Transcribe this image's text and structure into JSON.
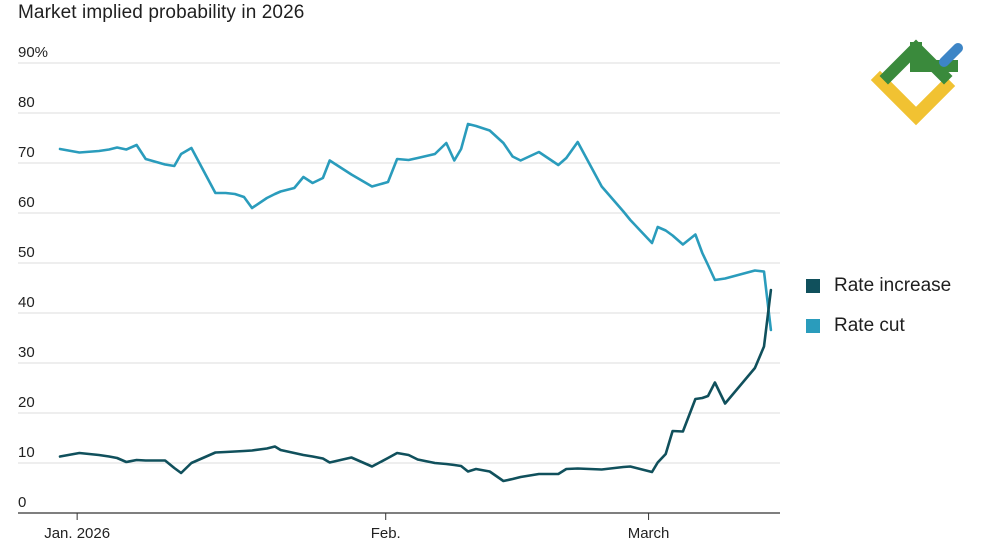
{
  "chart_data": {
    "type": "line",
    "title": "Market implied probability in 2026",
    "xlabel": "",
    "ylabel": "",
    "ylim": [
      0,
      90
    ],
    "y_ticks": [
      {
        "value": 0,
        "label": "0"
      },
      {
        "value": 10,
        "label": "10"
      },
      {
        "value": 20,
        "label": "20"
      },
      {
        "value": 30,
        "label": "30"
      },
      {
        "value": 40,
        "label": "40"
      },
      {
        "value": 50,
        "label": "50"
      },
      {
        "value": 60,
        "label": "60"
      },
      {
        "value": 70,
        "label": "70"
      },
      {
        "value": 80,
        "label": "80"
      },
      {
        "value": 90,
        "label": "90%"
      }
    ],
    "x_range": [
      0,
      63
    ],
    "x_ticks": [
      {
        "value": 1.5,
        "label": "Jan. 2026"
      },
      {
        "value": 28.5,
        "label": "Feb."
      },
      {
        "value": 51.5,
        "label": "March"
      }
    ],
    "grid": true,
    "legend_position": "right",
    "series": [
      {
        "name": "Rate increase",
        "color": "#10505c",
        "x": [
          0,
          1.7,
          3.4,
          4.3,
          5,
          5.8,
          6.7,
          7.5,
          9.2,
          10,
          10.6,
          11.5,
          13.6,
          14.5,
          15.3,
          16.1,
          16.8,
          18.1,
          18.8,
          19.3,
          20.5,
          21.3,
          22.1,
          23,
          23.6,
          25.5,
          27.3,
          28.7,
          29.5,
          30.5,
          31.3,
          32.8,
          33.8,
          34.5,
          35.1,
          35.7,
          36.4,
          37.6,
          38.8,
          39.6,
          40.3,
          41.9,
          43.6,
          44.3,
          45.3,
          47.4,
          49.3,
          49.9,
          51.8,
          52.3,
          53,
          53.6,
          54.5,
          55.6,
          56.2,
          56.7,
          57.3,
          58.2,
          60.8,
          61.6,
          62.2
        ],
        "values": [
          11.3,
          12,
          11.6,
          11.3,
          11,
          10.2,
          10.6,
          10.5,
          10.5,
          9,
          8,
          10,
          12.1,
          12.2,
          12.3,
          12.4,
          12.5,
          12.9,
          13.3,
          12.6,
          12,
          11.6,
          11.3,
          10.9,
          10.1,
          11.1,
          9.3,
          11,
          12,
          11.6,
          10.7,
          10,
          9.8,
          9.6,
          9.4,
          8.3,
          8.8,
          8.3,
          6.4,
          6.8,
          7.2,
          7.8,
          7.8,
          8.8,
          8.9,
          8.7,
          9.2,
          9.3,
          8.2,
          10.1,
          11.8,
          16.4,
          16.3,
          22.8,
          23,
          23.4,
          26.1,
          21.9,
          29,
          33.3,
          44.6
        ]
      },
      {
        "name": "Rate cut",
        "color": "#2a9cbc",
        "x": [
          0,
          1.7,
          3.4,
          4.3,
          5,
          5.8,
          6.7,
          7.5,
          9.2,
          10,
          10.6,
          11.5,
          13.6,
          14.5,
          15.3,
          16.1,
          16.8,
          18.1,
          18.8,
          19.3,
          20.5,
          21.3,
          22.1,
          23,
          23.6,
          25.5,
          27.3,
          28.7,
          29.5,
          30.5,
          31.3,
          32.8,
          33.8,
          34.5,
          35.1,
          35.7,
          36.4,
          37.6,
          38.8,
          39.6,
          40.3,
          41.9,
          43.6,
          44.3,
          45.3,
          47.4,
          49.3,
          49.9,
          51.8,
          52.3,
          53,
          53.6,
          54.5,
          55.6,
          56.2,
          56.7,
          57.3,
          58.2,
          60.8,
          61.6,
          62.2
        ],
        "values": [
          72.8,
          72.1,
          72.4,
          72.7,
          73.1,
          72.7,
          73.6,
          70.8,
          69.7,
          69.4,
          71.8,
          73,
          64,
          64,
          63.8,
          63.2,
          61,
          63,
          63.8,
          64.3,
          65,
          67.2,
          66,
          67,
          70.5,
          67.7,
          65.3,
          66.2,
          70.8,
          70.6,
          71,
          71.8,
          74,
          70.5,
          72.8,
          77.8,
          77.4,
          76.5,
          74,
          71.3,
          70.5,
          72.2,
          69.6,
          71,
          74.2,
          65.3,
          60.3,
          58.6,
          54,
          57.2,
          56.5,
          55.5,
          53.7,
          55.7,
          52,
          49.6,
          46.6,
          46.9,
          48.5,
          48.3,
          36.6
        ]
      }
    ]
  },
  "legend": {
    "items": [
      {
        "label": "Rate increase",
        "color": "#10505c"
      },
      {
        "label": "Rate cut",
        "color": "#2a9cbc"
      }
    ]
  },
  "logo": {
    "colors": {
      "green": "#3a8a3c",
      "yellow": "#f1c232",
      "blue": "#3d85c6"
    }
  }
}
